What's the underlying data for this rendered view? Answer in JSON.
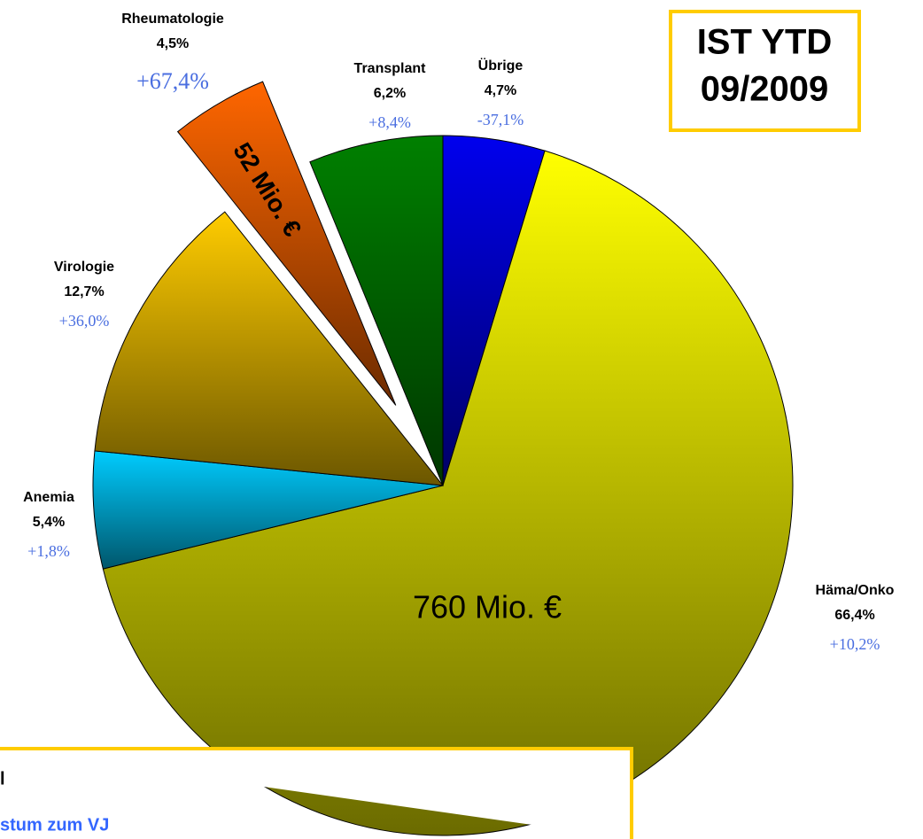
{
  "chart_data": {
    "type": "pie",
    "categories": [
      "Übrige",
      "Häma/Onko",
      "Anemia",
      "Virologie",
      "Rheumatologie",
      "Transplant"
    ],
    "values": [
      4.7,
      66.4,
      5.4,
      12.7,
      4.5,
      6.2
    ],
    "value_labels": [
      "4,7%",
      "66,4%",
      "5,4%",
      "12,7%",
      "4,5%",
      "6,2%"
    ],
    "changes": [
      -37.1,
      10.2,
      1.8,
      36.0,
      67.4,
      8.4
    ],
    "change_labels": [
      "-37,1%",
      "+10,2%",
      "+1,8%",
      "+36,0%",
      "+67,4%",
      "+8,4%"
    ],
    "colors": [
      "#0000ee",
      "#ffff00",
      "#00ccff",
      "#ffcc00",
      "#ff6600",
      "#008000"
    ],
    "exploded": "Rheumatologie",
    "annotations": [
      "52 Mio. €",
      "760 Mio. €"
    ],
    "title_box": [
      "IST YTD",
      "09/2009"
    ],
    "legend_box": [
      "l",
      "stum zum VJ"
    ]
  }
}
